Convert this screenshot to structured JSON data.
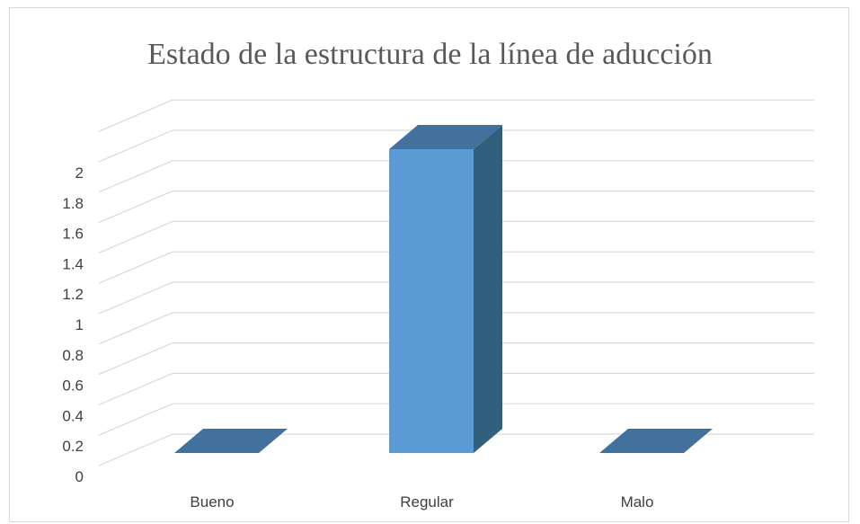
{
  "chart_data": {
    "type": "bar",
    "style": "3d-column",
    "title": "Estado de la estructura de la línea de aducción",
    "categories": [
      "Bueno",
      "Regular",
      "Malo"
    ],
    "values": [
      0,
      2,
      0
    ],
    "ylim": [
      0,
      2.2
    ],
    "ytick_labels": [
      "0",
      "0.2",
      "0.4",
      "0.6",
      "0.8",
      "1",
      "1.2",
      "1.4",
      "1.6",
      "1.8",
      "2"
    ],
    "yticks": [
      0,
      0.2,
      0.4,
      0.6,
      0.8,
      1,
      1.2,
      1.4,
      1.6,
      1.8,
      2
    ],
    "grid": true,
    "legend": "none",
    "colors": {
      "front": "#5b9bd5",
      "top": "#41719c",
      "side": "#31607f",
      "grid": "#d9d9d9",
      "text": "#404040"
    }
  }
}
